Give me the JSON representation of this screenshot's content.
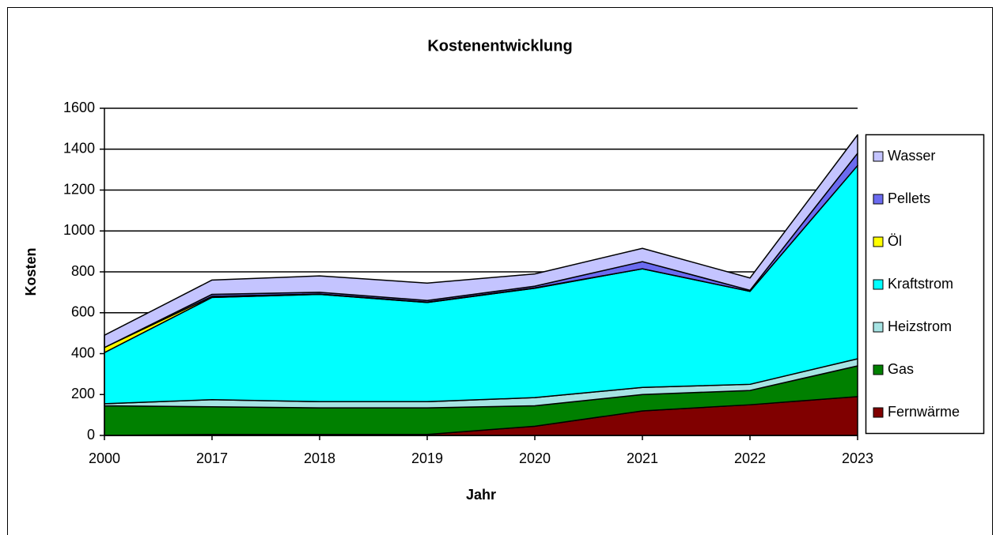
{
  "chart_data": {
    "type": "stacked_area",
    "title": "Kostenentwicklung",
    "x_label": "Jahr",
    "y_label": "Kosten",
    "categories": [
      "2000",
      "2017",
      "2018",
      "2019",
      "2020",
      "2021",
      "2022",
      "2023"
    ],
    "series": [
      {
        "name": "Fernwärme",
        "color": "#800000",
        "values": [
          0,
          5,
          5,
          5,
          45,
          120,
          150,
          190
        ]
      },
      {
        "name": "Gas",
        "color": "#008000",
        "values": [
          145,
          135,
          130,
          130,
          100,
          80,
          70,
          150
        ]
      },
      {
        "name": "Heizstrom",
        "color": "#a6e3e3",
        "values": [
          10,
          35,
          30,
          30,
          40,
          35,
          30,
          35
        ]
      },
      {
        "name": "Kraftstrom",
        "color": "#00ffff",
        "values": [
          250,
          500,
          525,
          485,
          535,
          580,
          455,
          945
        ]
      },
      {
        "name": "Öl",
        "color": "#ffff00",
        "values": [
          25,
          5,
          2,
          2,
          2,
          0,
          0,
          0
        ]
      },
      {
        "name": "Pellets",
        "color": "#6b6bf0",
        "values": [
          0,
          10,
          8,
          8,
          8,
          35,
          5,
          60
        ]
      },
      {
        "name": "Wasser",
        "color": "#c4c4ff",
        "values": [
          60,
          70,
          80,
          85,
          60,
          65,
          60,
          90
        ]
      }
    ],
    "ylim": [
      0,
      1600
    ],
    "yticks": [
      0,
      200,
      400,
      600,
      800,
      1000,
      1200,
      1400,
      1600
    ],
    "grid": true,
    "legend": "right"
  }
}
